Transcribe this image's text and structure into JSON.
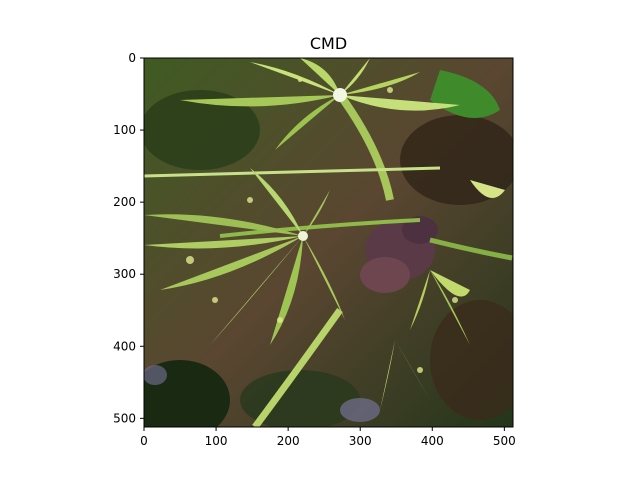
{
  "figure": {
    "title": "CMD",
    "image_size": [
      512,
      512
    ],
    "x_ticks": [
      0,
      100,
      200,
      300,
      400,
      500
    ],
    "y_ticks": [
      0,
      100,
      200,
      300,
      400,
      500
    ],
    "x_tick_labels": [
      "0",
      "100",
      "200",
      "300",
      "400",
      "500"
    ],
    "y_tick_labels": [
      "0",
      "100",
      "200",
      "300",
      "400",
      "500"
    ],
    "x_axis_label": "",
    "y_axis_label": "",
    "image_content": "cassava-leaves-with-mosaic-disease",
    "colors": {
      "leaf_green": "#6f9a2e",
      "leaf_light": "#b8d86a",
      "mosaic_yellow": "#d9e27a",
      "stem": "#a7c75a",
      "soil": "#6b4e34",
      "shadow": "#1f3118",
      "purple_leaf": "#5b3a48"
    }
  }
}
